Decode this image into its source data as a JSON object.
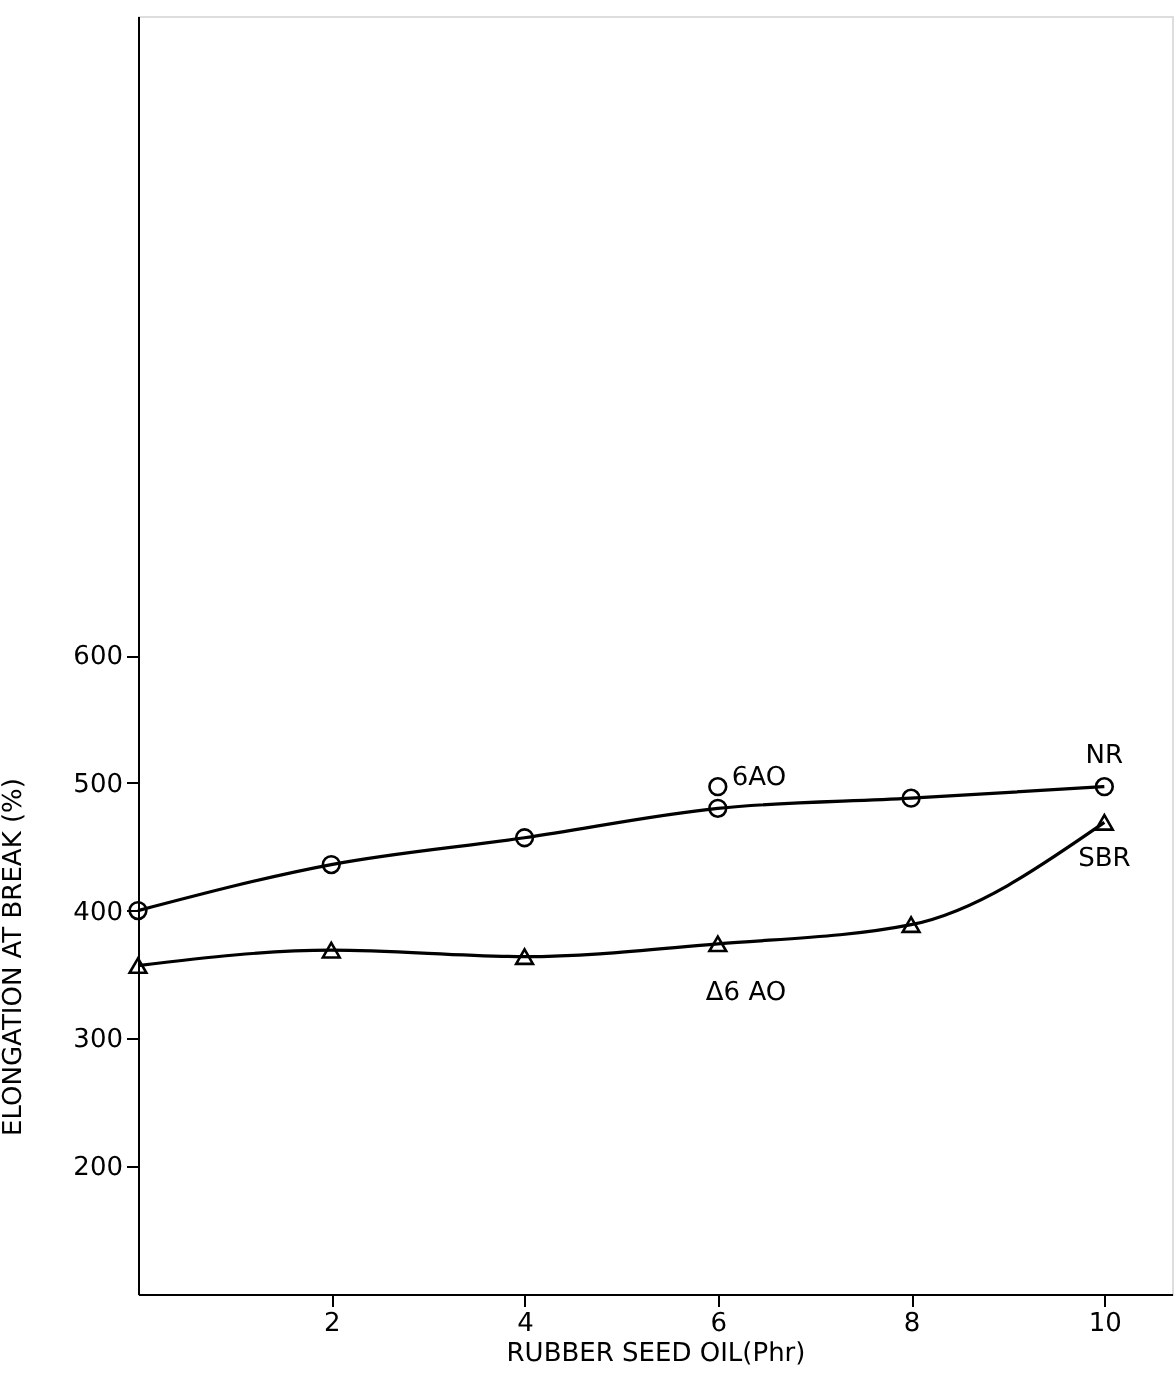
{
  "chart_data": {
    "type": "line",
    "xlabel": "RUBBER SEED OIL(Phr)",
    "ylabel": "ELONGATION AT BREAK (%)",
    "xlim": [
      0,
      10.7
    ],
    "ylim": [
      100,
      1100
    ],
    "xticks": [
      2,
      4,
      6,
      8,
      10
    ],
    "yticks": [
      200,
      300,
      400,
      500,
      600
    ],
    "grid": false,
    "legend": false,
    "line_style": "solid",
    "series": [
      {
        "name": "NR",
        "type": "line",
        "marker": "circle",
        "color": "#000000",
        "x": [
          0,
          2,
          4,
          6,
          8,
          10
        ],
        "values": [
          400,
          436,
          457,
          480,
          488,
          497
        ]
      },
      {
        "type": "scatter",
        "marker": "circle",
        "color": "#000000",
        "x": [
          6
        ],
        "values": [
          497
        ]
      },
      {
        "name": "SBR",
        "type": "line",
        "marker": "triangle",
        "color": "#000000",
        "x": [
          0,
          2,
          4,
          6,
          8,
          10
        ],
        "values": [
          357,
          369,
          364,
          374,
          389,
          469
        ]
      }
    ],
    "annotations": [
      {
        "text": "6AO",
        "x": 6,
        "y": 497
      },
      {
        "text": "Δ6 AO",
        "x": 6,
        "y": 374
      }
    ]
  }
}
